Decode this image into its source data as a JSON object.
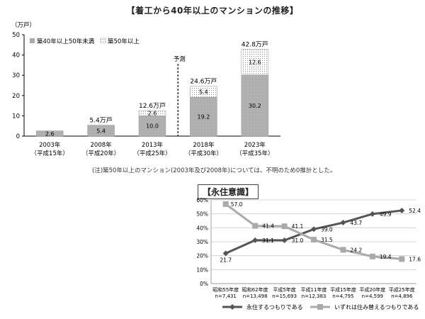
{
  "chart_data": [
    {
      "type": "bar",
      "title": "【着工から40年以上のマンションの推移】",
      "ylabel": "（万戸）",
      "ylim": [
        0,
        50
      ],
      "yticks": [
        "0",
        "10",
        "20",
        "30",
        "40",
        "50"
      ],
      "categories": [
        [
          "2003年",
          "（平成15年）"
        ],
        [
          "2008年",
          "（平成20年）"
        ],
        [
          "2013年",
          "（平成25年）"
        ],
        [
          "2018年",
          "（平成30年）"
        ],
        [
          "2023年",
          "（平成35年）"
        ]
      ],
      "series": [
        {
          "name": "築40年以上50年未満",
          "values": [
            2.6,
            5.4,
            10.0,
            19.2,
            30.2
          ],
          "labels": [
            "2.6",
            "5.4",
            "10.0",
            "19.2",
            "30.2"
          ],
          "color": "#b8b8b8"
        },
        {
          "name": "築50年以上",
          "values": [
            0,
            0,
            2.6,
            5.4,
            12.6
          ],
          "labels": [
            "",
            "",
            "2.6",
            "5.4",
            "12.6"
          ],
          "color": "#f2f2f2"
        }
      ],
      "totals": [
        "",
        "5.4万戸",
        "12.6万戸",
        "24.6万戸",
        "42.8万戸"
      ],
      "forecast_label": "予測",
      "note": "(注)築50年以上のマンション(2003年及び2008年)については、不明のため0推計とした。",
      "legend_position": "top-left",
      "grid": false
    },
    {
      "type": "line",
      "title": "【永住意識】",
      "ylim": [
        0,
        60
      ],
      "yticks": [
        "0%",
        "10%",
        "20%",
        "30%",
        "40%",
        "50%",
        "60%"
      ],
      "categories": [
        [
          "昭和55年度",
          "n=7,431"
        ],
        [
          "昭和62年度",
          "n=13,498"
        ],
        [
          "平成5年度",
          "n=15,693"
        ],
        [
          "平成11年度",
          "n=12,383"
        ],
        [
          "平成15年度",
          "n=4,795"
        ],
        [
          "平成20年度",
          "n=4,599"
        ],
        [
          "平成25年度",
          "n=4,896"
        ]
      ],
      "series": [
        {
          "name": "永住するつもりである",
          "values": [
            21.7,
            31.1,
            31.0,
            39.0,
            43.7,
            49.9,
            52.4
          ],
          "labels": [
            "21.7",
            "31.1",
            "31.0",
            "39.0",
            "43.7",
            "49.9",
            "52.4"
          ],
          "color": "#555555",
          "marker": "diamond"
        },
        {
          "name": "いずれは住み替えるつもりである",
          "values": [
            57.0,
            41.4,
            41.1,
            31.5,
            24.2,
            19.4,
            17.6
          ],
          "labels": [
            "57.0",
            "41.4",
            "41.1",
            "31.5",
            "24.2",
            "19.4",
            "17.6"
          ],
          "color": "#aaaaaa",
          "marker": "square"
        }
      ],
      "legend_position": "bottom",
      "grid": true
    }
  ]
}
